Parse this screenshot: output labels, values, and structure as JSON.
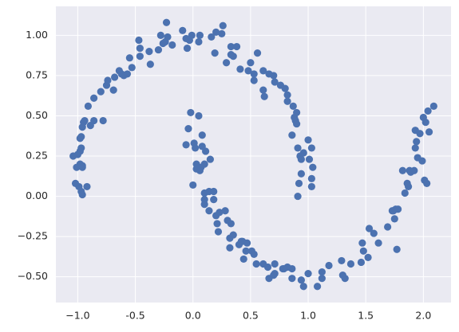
{
  "chart_data": {
    "type": "scatter",
    "x": [
      -1.02,
      -0.99,
      -0.96,
      -0.97,
      -0.92,
      -1.01,
      -0.98,
      -0.96,
      -0.96,
      -1.04,
      -1.0,
      -0.98,
      -0.97,
      -0.98,
      -0.97,
      -0.96,
      -0.95,
      -0.94,
      -0.89,
      -0.86,
      -0.78,
      -0.91,
      -0.86,
      -0.8,
      -0.75,
      -0.74,
      -0.69,
      -0.68,
      -0.64,
      -0.62,
      -0.6,
      -0.57,
      -0.53,
      -0.55,
      -0.46,
      -0.46,
      -0.47,
      -0.38,
      -0.37,
      -0.3,
      -0.28,
      -0.24,
      -0.22,
      -0.26,
      -0.18,
      -0.23,
      -0.09,
      -0.06,
      -0.05,
      -0.03,
      -0.01,
      0.05,
      0.06,
      0.16,
      0.2,
      0.26,
      0.25,
      0.19,
      0.29,
      0.33,
      0.35,
      0.38,
      0.33,
      0.41,
      0.48,
      0.5,
      0.53,
      0.53,
      0.56,
      0.61,
      0.66,
      0.61,
      0.62,
      0.7,
      0.71,
      0.76,
      0.8,
      0.82,
      0.82,
      0.87,
      0.9,
      0.88,
      0.89,
      0.86,
      0.9,
      0.91,
      0.93,
      0.96,
      0.94,
      1.03,
      1.01,
      1.04,
      1.03,
      1.03,
      0.94,
      0.92,
      0.91,
      1.0,
      -0.02,
      0.05,
      -0.04,
      0.01,
      0.08,
      0.08,
      0.11,
      0.15,
      -0.06,
      0.02,
      0.03,
      0.03,
      0.07,
      0.1,
      0.0,
      0.06,
      0.1,
      0.1,
      0.14,
      0.1,
      0.18,
      0.18,
      0.14,
      0.2,
      0.21,
      0.23,
      0.28,
      0.3,
      0.33,
      0.22,
      0.32,
      0.35,
      0.32,
      0.42,
      0.43,
      0.4,
      0.47,
      0.46,
      0.51,
      0.53,
      0.44,
      0.55,
      0.61,
      0.65,
      0.71,
      0.66,
      0.71,
      0.7,
      0.78,
      0.79,
      0.82,
      0.86,
      0.86,
      0.94,
      1.0,
      0.96,
      1.08,
      1.12,
      1.12,
      1.18,
      1.29,
      1.3,
      1.32,
      1.37,
      1.46,
      1.48,
      1.47,
      1.52,
      1.57,
      1.53,
      1.61,
      1.69,
      1.74,
      1.75,
      1.76,
      1.73,
      1.78,
      1.84,
      1.87,
      1.86,
      1.89,
      1.88,
      1.92,
      1.82,
      1.77,
      1.93,
      1.94,
      1.93,
      1.97,
      1.95,
      1.99,
      2.0,
      2.04,
      2.02,
      2.05,
      2.09,
      2.03,
      2.01
    ],
    "values": [
      0.08,
      0.06,
      0.01,
      0.03,
      0.06,
      0.18,
      0.2,
      0.19,
      0.18,
      0.25,
      0.26,
      0.28,
      0.3,
      0.36,
      0.37,
      0.43,
      0.46,
      0.47,
      0.44,
      0.47,
      0.47,
      0.56,
      0.61,
      0.65,
      0.69,
      0.72,
      0.66,
      0.74,
      0.78,
      0.76,
      0.75,
      0.76,
      0.8,
      0.86,
      0.87,
      0.92,
      0.97,
      0.9,
      0.82,
      0.91,
      1.0,
      0.96,
      0.99,
      0.95,
      0.94,
      1.08,
      1.03,
      0.98,
      0.92,
      0.97,
      1.0,
      0.96,
      1.0,
      0.99,
      1.02,
      1.06,
      1.01,
      0.89,
      0.83,
      0.93,
      0.87,
      0.93,
      0.88,
      0.79,
      0.78,
      0.83,
      0.76,
      0.72,
      0.89,
      0.78,
      0.76,
      0.66,
      0.62,
      0.75,
      0.71,
      0.69,
      0.67,
      0.63,
      0.59,
      0.56,
      0.52,
      0.49,
      0.47,
      0.38,
      0.45,
      0.3,
      0.25,
      0.27,
      0.23,
      0.3,
      0.23,
      0.18,
      0.11,
      0.06,
      0.14,
      0.08,
      0.0,
      0.35,
      0.52,
      0.5,
      0.42,
      0.33,
      0.38,
      0.31,
      0.28,
      0.23,
      0.32,
      0.3,
      0.2,
      0.17,
      0.18,
      0.2,
      0.07,
      0.16,
      0.02,
      -0.02,
      0.03,
      -0.05,
      0.03,
      -0.02,
      -0.09,
      -0.12,
      -0.17,
      -0.1,
      -0.09,
      -0.15,
      -0.17,
      -0.22,
      -0.26,
      -0.24,
      -0.32,
      -0.28,
      -0.28,
      -0.3,
      -0.29,
      -0.34,
      -0.34,
      -0.36,
      -0.39,
      -0.42,
      -0.42,
      -0.44,
      -0.42,
      -0.51,
      -0.48,
      -0.49,
      -0.45,
      -0.45,
      -0.44,
      -0.45,
      -0.51,
      -0.52,
      -0.48,
      -0.56,
      -0.56,
      -0.51,
      -0.47,
      -0.43,
      -0.4,
      -0.49,
      -0.51,
      -0.42,
      -0.41,
      -0.34,
      -0.29,
      -0.38,
      -0.23,
      -0.2,
      -0.29,
      -0.19,
      -0.09,
      -0.14,
      -0.08,
      -0.09,
      -0.08,
      0.02,
      0.06,
      0.08,
      0.15,
      0.16,
      0.16,
      0.16,
      -0.33,
      0.3,
      0.34,
      0.41,
      0.39,
      0.24,
      0.22,
      0.49,
      0.53,
      0.46,
      0.4,
      0.56,
      0.08,
      0.1
    ],
    "color": "#4c72b0",
    "xlim": [
      -1.19,
      2.24
    ],
    "ylim": [
      -0.66,
      1.18
    ],
    "xticks": [
      {
        "value": -1,
        "label": "−1.0"
      },
      -0.5,
      {
        "value": 0,
        "label": "0.0"
      },
      0.5,
      {
        "value": 1,
        "label": "1.0"
      },
      1.5,
      {
        "value": 2,
        "label": "2.0"
      }
    ],
    "yticks": [
      {
        "value": -0.5,
        "label": "−0.50"
      },
      {
        "value": -0.25,
        "label": "−0.25"
      },
      {
        "value": 0,
        "label": "0.00"
      },
      0.25,
      {
        "value": 0.5,
        "label": "0.50"
      },
      0.75,
      {
        "value": 1,
        "label": "1.00"
      }
    ],
    "grid": true
  }
}
